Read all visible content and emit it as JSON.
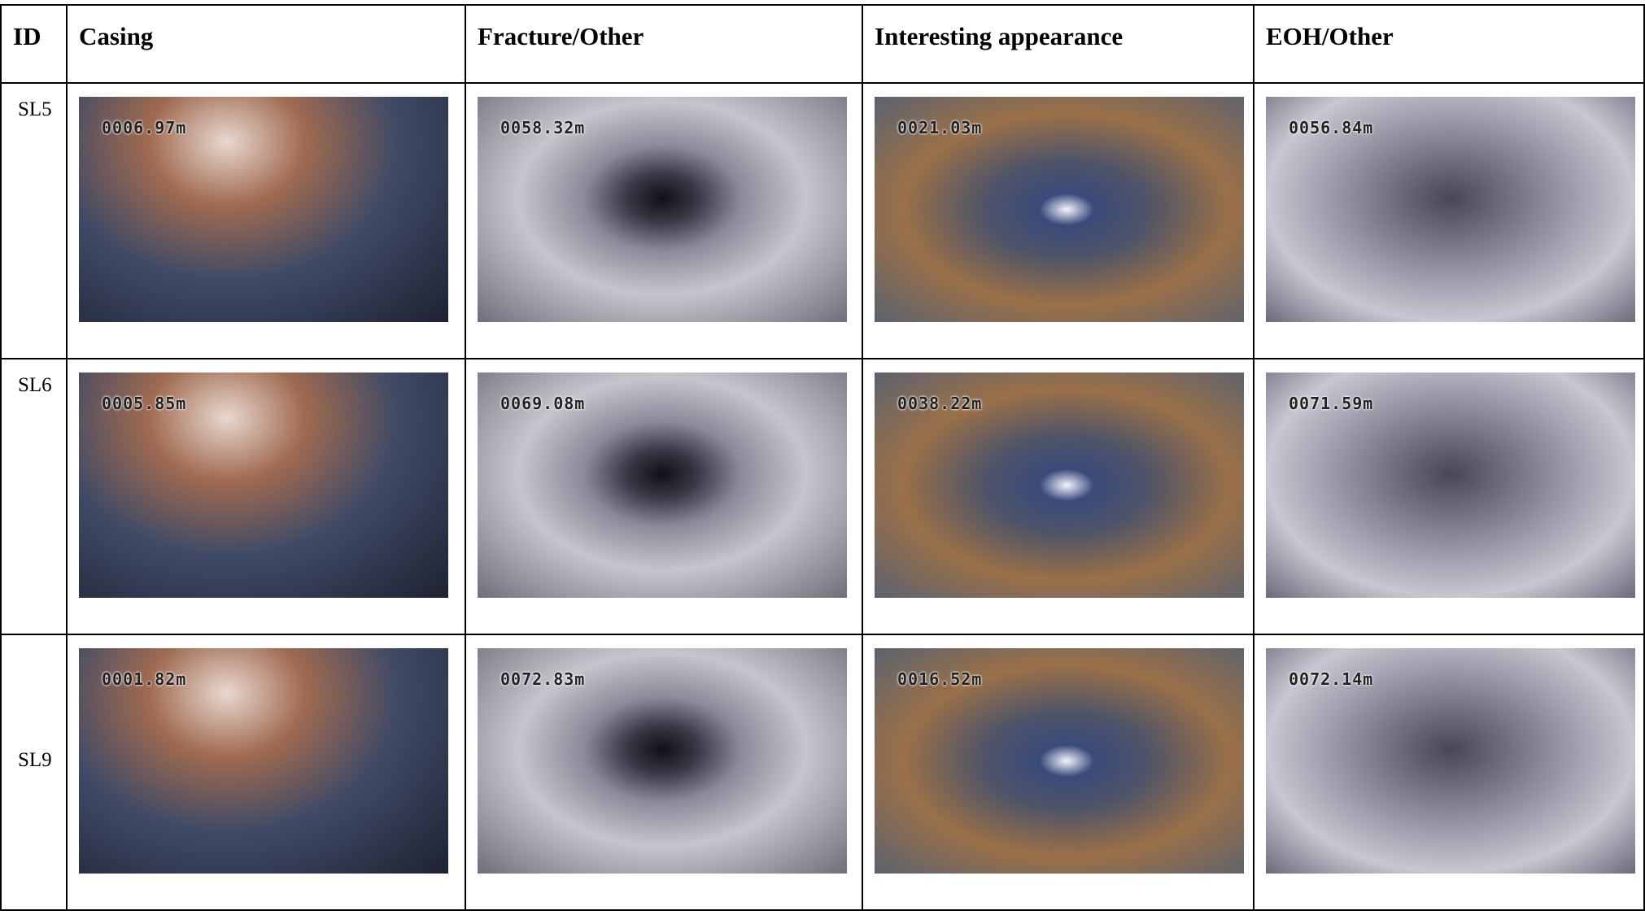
{
  "table": {
    "header": [
      "ID",
      "Casing",
      "Fracture/Other",
      "Interesting appearance",
      "EOH/Other"
    ],
    "rows": [
      {
        "id": "SL5",
        "depths": [
          "0006.97m",
          "0058.32m",
          "0021.03m",
          "0056.84m"
        ]
      },
      {
        "id": "SL6",
        "depths": [
          "0005.85m",
          "0069.08m",
          "0038.22m",
          "0071.59m"
        ]
      },
      {
        "id": "SL9",
        "depths": [
          "0001.82m",
          "0072.83m",
          "0016.52m",
          "0072.14m"
        ]
      }
    ]
  }
}
